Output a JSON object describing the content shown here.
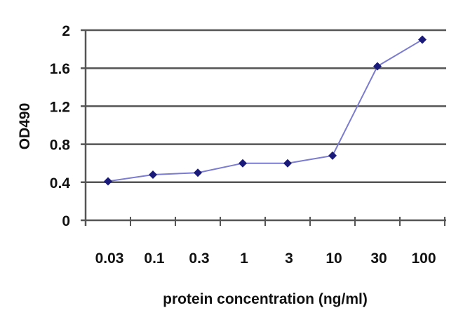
{
  "chart_data": {
    "type": "line",
    "title": "",
    "xlabel": "protein concentration (ng/ml)",
    "ylabel": "OD490",
    "categories": [
      "0.03",
      "0.1",
      "0.3",
      "1",
      "3",
      "10",
      "30",
      "100"
    ],
    "series": [
      {
        "name": "OD490",
        "values": [
          0.41,
          0.48,
          0.5,
          0.6,
          0.6,
          0.68,
          1.62,
          1.9
        ]
      }
    ],
    "ylim": [
      0,
      2
    ],
    "yticks": [
      "0",
      "0.4",
      "0.8",
      "1.2",
      "1.6",
      "2"
    ],
    "grid": true,
    "line_color": "#7b7bd0",
    "marker_color": "#1a1a7a"
  }
}
